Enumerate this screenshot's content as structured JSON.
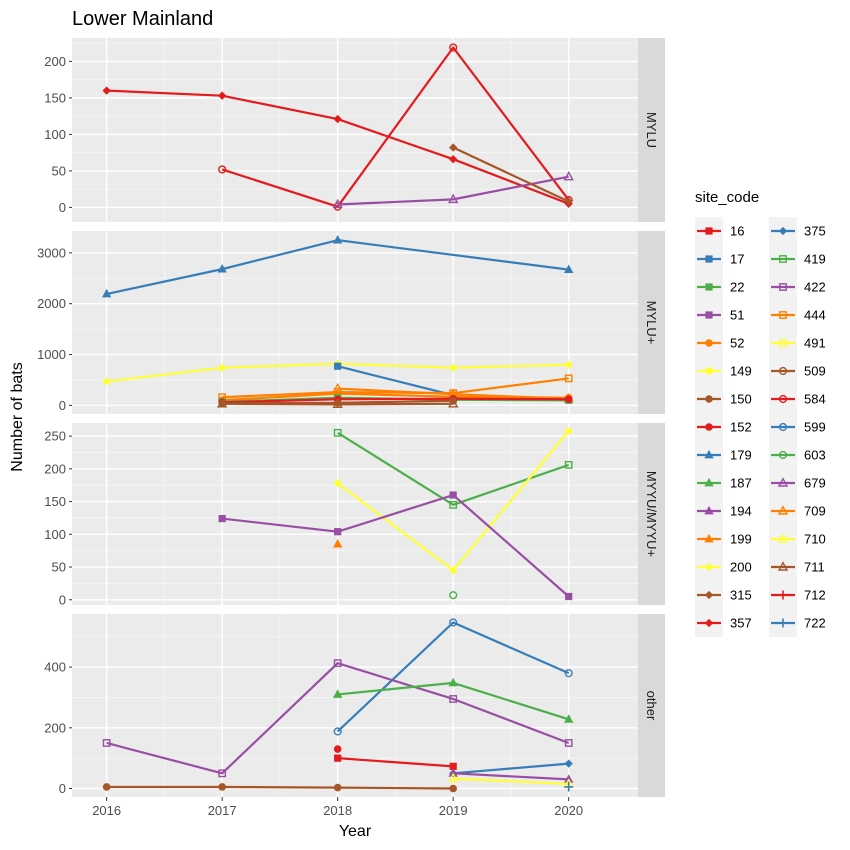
{
  "chart_data": {
    "type": "line",
    "title": "Lower Mainland",
    "xlabel": "Year",
    "ylabel": "Number of bats",
    "x_ticks": [
      2016,
      2017,
      2018,
      2019,
      2020
    ],
    "xlim": [
      2015.7,
      2020.6
    ],
    "legend": {
      "title": "site_code",
      "placement": "right"
    },
    "sites": [
      {
        "code": "16",
        "color": "#E41A1C",
        "shape": "square"
      },
      {
        "code": "17",
        "color": "#377EB8",
        "shape": "square"
      },
      {
        "code": "22",
        "color": "#4DAF4A",
        "shape": "square"
      },
      {
        "code": "51",
        "color": "#984EA3",
        "shape": "square"
      },
      {
        "code": "52",
        "color": "#FF7F00",
        "shape": "circle"
      },
      {
        "code": "149",
        "color": "#FFFF33",
        "shape": "circle"
      },
      {
        "code": "150",
        "color": "#A65628",
        "shape": "circle"
      },
      {
        "code": "152",
        "color": "#E41A1C",
        "shape": "circle"
      },
      {
        "code": "179",
        "color": "#377EB8",
        "shape": "triangle"
      },
      {
        "code": "187",
        "color": "#4DAF4A",
        "shape": "triangle"
      },
      {
        "code": "194",
        "color": "#984EA3",
        "shape": "triangle"
      },
      {
        "code": "199",
        "color": "#FF7F00",
        "shape": "triangle"
      },
      {
        "code": "200",
        "color": "#FFFF33",
        "shape": "diamond"
      },
      {
        "code": "315",
        "color": "#A65628",
        "shape": "diamond"
      },
      {
        "code": "357",
        "color": "#E41A1C",
        "shape": "diamond"
      },
      {
        "code": "375",
        "color": "#377EB8",
        "shape": "diamond"
      },
      {
        "code": "419",
        "color": "#4DAF4A",
        "shape": "square-open"
      },
      {
        "code": "422",
        "color": "#984EA3",
        "shape": "square-open"
      },
      {
        "code": "444",
        "color": "#FF7F00",
        "shape": "square-open"
      },
      {
        "code": "491",
        "color": "#FFFF33",
        "shape": "square-open"
      },
      {
        "code": "509",
        "color": "#A65628",
        "shape": "circle-open"
      },
      {
        "code": "584",
        "color": "#E41A1C",
        "shape": "circle-open"
      },
      {
        "code": "599",
        "color": "#377EB8",
        "shape": "circle-open"
      },
      {
        "code": "603",
        "color": "#4DAF4A",
        "shape": "circle-open"
      },
      {
        "code": "679",
        "color": "#984EA3",
        "shape": "triangle-open"
      },
      {
        "code": "709",
        "color": "#FF7F00",
        "shape": "triangle-open"
      },
      {
        "code": "710",
        "color": "#FFFF33",
        "shape": "triangle-open"
      },
      {
        "code": "711",
        "color": "#A65628",
        "shape": "triangle-open"
      },
      {
        "code": "712",
        "color": "#E41A1C",
        "shape": "plus"
      },
      {
        "code": "722",
        "color": "#377EB8",
        "shape": "plus"
      }
    ],
    "panels": [
      {
        "label": "MYLU",
        "ylim": [
          -20,
          232
        ],
        "yticks": [
          0,
          50,
          100,
          150,
          200
        ],
        "series": [
          {
            "site": "357",
            "points": [
              [
                2016,
                160
              ],
              [
                2017,
                153
              ],
              [
                2018,
                121
              ],
              [
                2019,
                66
              ],
              [
                2020,
                5
              ]
            ]
          },
          {
            "site": "584",
            "points": [
              [
                2017,
                52
              ],
              [
                2018,
                1
              ],
              [
                2019,
                219
              ],
              [
                2020,
                10
              ]
            ]
          },
          {
            "site": "679",
            "points": [
              [
                2018,
                4
              ],
              [
                2019,
                11
              ],
              [
                2020,
                42
              ]
            ]
          },
          {
            "site": "315",
            "points": [
              [
                2019,
                82
              ],
              [
                2020,
                8
              ]
            ]
          }
        ]
      },
      {
        "label": "MYLU+",
        "ylim": [
          -170,
          3430
        ],
        "yticks": [
          0,
          1000,
          2000,
          3000
        ],
        "series": [
          {
            "site": "179",
            "points": [
              [
                2016,
                2190
              ],
              [
                2017,
                2680
              ],
              [
                2018,
                3250
              ],
              [
                2020,
                2670
              ]
            ]
          },
          {
            "site": "200",
            "points": [
              [
                2016,
                470
              ],
              [
                2017,
                740
              ],
              [
                2018,
                820
              ],
              [
                2019,
                740
              ],
              [
                2020,
                800
              ]
            ]
          },
          {
            "site": "17",
            "points": [
              [
                2018,
                770
              ],
              [
                2019,
                200
              ]
            ]
          },
          {
            "site": "444",
            "points": [
              [
                2017,
                160
              ],
              [
                2018,
                260
              ],
              [
                2019,
                240
              ],
              [
                2020,
                530
              ]
            ]
          },
          {
            "site": "709",
            "points": [
              [
                2018,
                330
              ],
              [
                2019,
                220
              ],
              [
                2020,
                130
              ]
            ]
          },
          {
            "site": "52",
            "points": [
              [
                2017,
                100
              ],
              [
                2018,
                230
              ],
              [
                2019,
                170
              ],
              [
                2020,
                150
              ]
            ]
          },
          {
            "site": "22",
            "points": [
              [
                2017,
                70
              ],
              [
                2018,
                150
              ],
              [
                2019,
                110
              ],
              [
                2020,
                100
              ]
            ]
          },
          {
            "site": "152",
            "points": [
              [
                2017,
                60
              ],
              [
                2018,
                120
              ],
              [
                2019,
                130
              ],
              [
                2020,
                120
              ]
            ]
          },
          {
            "site": "150",
            "points": [
              [
                2017,
                40
              ],
              [
                2018,
                50
              ],
              [
                2019,
                90
              ]
            ]
          },
          {
            "site": "711",
            "points": [
              [
                2017,
                30
              ],
              [
                2018,
                20
              ],
              [
                2019,
                30
              ]
            ]
          }
        ]
      },
      {
        "label": "MYYU/MYYU+",
        "ylim": [
          -8,
          270
        ],
        "yticks": [
          0,
          50,
          100,
          150,
          200,
          250
        ],
        "series": [
          {
            "site": "419",
            "points": [
              [
                2018,
                255
              ],
              [
                2019,
                145
              ],
              [
                2020,
                206
              ]
            ]
          },
          {
            "site": "200",
            "points": [
              [
                2018,
                178
              ],
              [
                2019,
                45
              ],
              [
                2020,
                258
              ]
            ]
          },
          {
            "site": "51",
            "points": [
              [
                2017,
                124
              ],
              [
                2018,
                104
              ],
              [
                2019,
                160
              ],
              [
                2020,
                5
              ]
            ]
          },
          {
            "site": "199",
            "points": [
              [
                2018,
                85
              ]
            ]
          },
          {
            "site": "603",
            "points": [
              [
                2019,
                7
              ]
            ]
          }
        ]
      },
      {
        "label": "other",
        "ylim": [
          -28,
          575
        ],
        "yticks": [
          0,
          200,
          400
        ],
        "series": [
          {
            "site": "599",
            "points": [
              [
                2018,
                188
              ],
              [
                2019,
                547
              ],
              [
                2020,
                380
              ]
            ]
          },
          {
            "site": "422",
            "points": [
              [
                2016,
                150
              ],
              [
                2017,
                50
              ],
              [
                2018,
                413
              ],
              [
                2019,
                295
              ],
              [
                2020,
                150
              ]
            ]
          },
          {
            "site": "187",
            "points": [
              [
                2018,
                310
              ],
              [
                2019,
                348
              ],
              [
                2020,
                228
              ]
            ]
          },
          {
            "site": "152",
            "points": [
              [
                2018,
                130
              ]
            ]
          },
          {
            "site": "16",
            "points": [
              [
                2018,
                100
              ],
              [
                2019,
                73
              ]
            ]
          },
          {
            "site": "375",
            "points": [
              [
                2019,
                50
              ],
              [
                2020,
                82
              ]
            ]
          },
          {
            "site": "194",
            "points": [
              [
                2019,
                50
              ],
              [
                2020,
                30
              ]
            ]
          },
          {
            "site": "710",
            "points": [
              [
                2019,
                33
              ],
              [
                2020,
                15
              ]
            ]
          },
          {
            "site": "150",
            "points": [
              [
                2016,
                5
              ],
              [
                2017,
                5
              ],
              [
                2018,
                3
              ],
              [
                2019,
                0
              ]
            ]
          },
          {
            "site": "722",
            "points": [
              [
                2020,
                5
              ]
            ]
          }
        ]
      }
    ]
  }
}
